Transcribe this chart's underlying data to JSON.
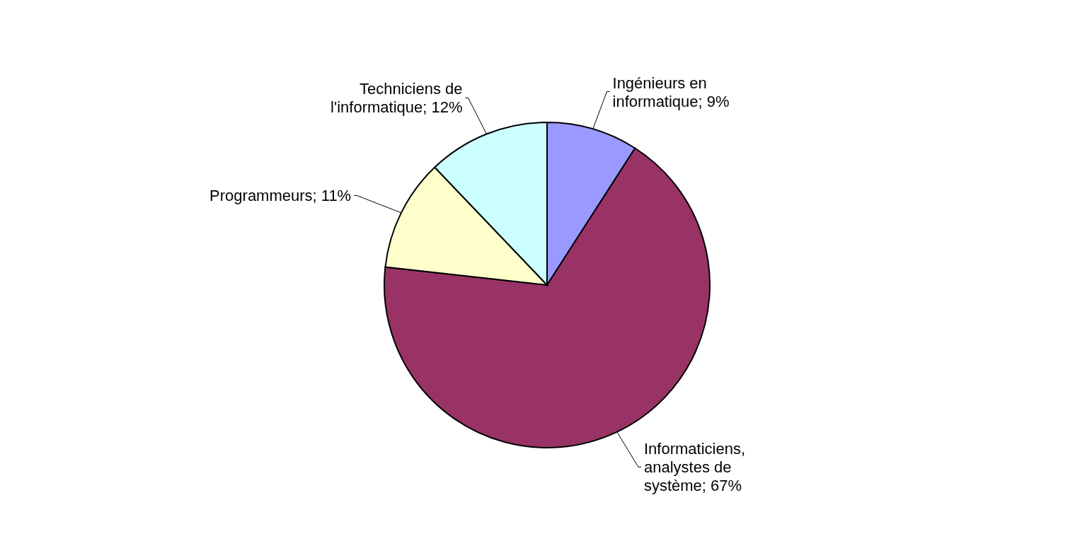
{
  "chart_data": {
    "type": "pie",
    "categories": [
      "Ingénieurs en informatique",
      "Informaticiens, analystes de système",
      "Programmeurs",
      "Techniciens de l'informatique"
    ],
    "values": [
      9,
      67,
      11,
      12
    ],
    "value_labels": [
      "9%",
      "67%",
      "11%",
      "12%"
    ],
    "colors": [
      "#9999ff",
      "#993366",
      "#ffffcc",
      "#ccffff"
    ]
  }
}
